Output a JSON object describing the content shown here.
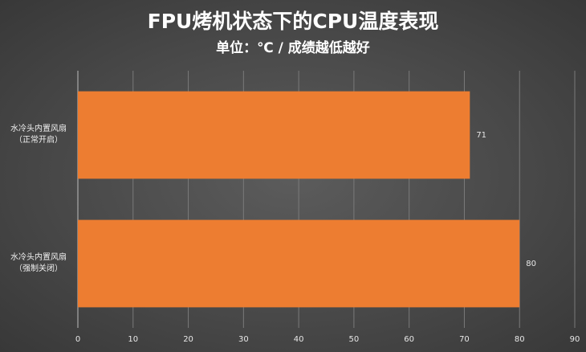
{
  "chart_data": {
    "type": "barh",
    "title": "FPU烤机状态下的CPU温度表现",
    "subtitle": "单位：℃ / 成绩越低越好",
    "categories": [
      "水冷头内置风扇\n（正常开启）",
      "水冷头内置风扇\n（强制关闭）"
    ],
    "values": [
      71,
      80
    ],
    "color": "#ed7d31",
    "xlim": [
      0,
      90
    ],
    "xticks": [
      0,
      10,
      20,
      30,
      40,
      50,
      60,
      70,
      80,
      90
    ],
    "grid": true
  }
}
